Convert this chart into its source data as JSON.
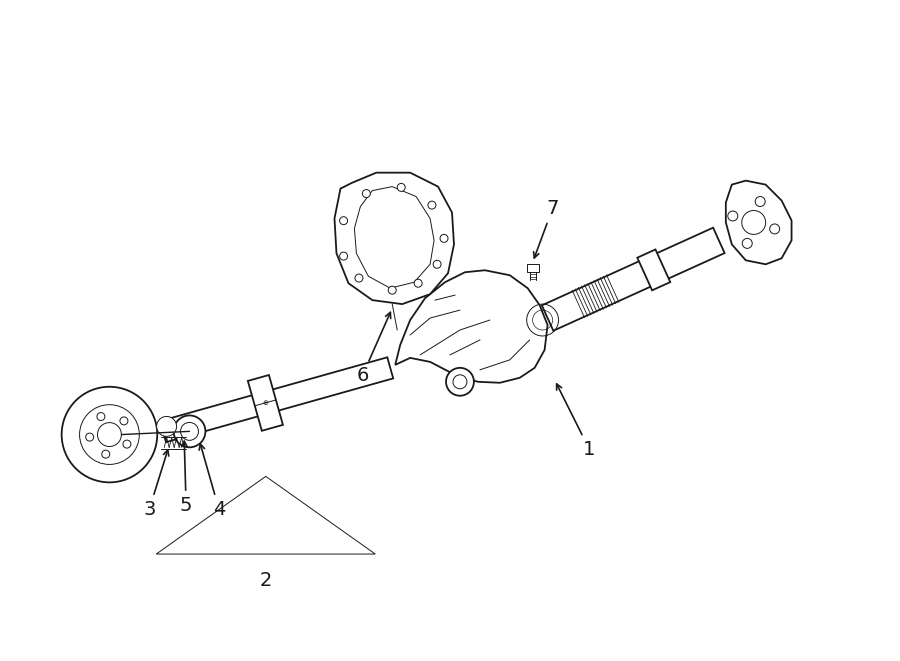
{
  "bg_color": "#ffffff",
  "line_color": "#1a1a1a",
  "fig_width": 9.0,
  "fig_height": 6.61,
  "dpi": 100,
  "lw_main": 1.3,
  "lw_thin": 0.7,
  "lw_thick": 1.8
}
